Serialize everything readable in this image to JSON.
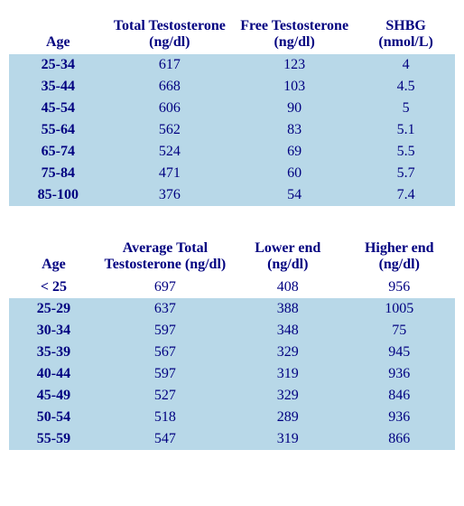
{
  "colors": {
    "text": "#000080",
    "row_band": "#b8d8e8",
    "background": "#ffffff"
  },
  "typography": {
    "font_family": "Times New Roman",
    "base_fontsize": 16,
    "header_weight": "bold",
    "age_col_weight": "bold"
  },
  "table1": {
    "type": "table",
    "columns": [
      {
        "label": "Age"
      },
      {
        "label": "Total Testosterone (ng/dl)"
      },
      {
        "label": "Free Testosterone (ng/dl)"
      },
      {
        "label": "SHBG (nmol/L)"
      }
    ],
    "rows": [
      {
        "age": "25-34",
        "total": "617",
        "free": "123",
        "shbg": "4"
      },
      {
        "age": "35-44",
        "total": "668",
        "free": "103",
        "shbg": "4.5"
      },
      {
        "age": "45-54",
        "total": "606",
        "free": "90",
        "shbg": "5"
      },
      {
        "age": "55-64",
        "total": "562",
        "free": "83",
        "shbg": "5.1"
      },
      {
        "age": "65-74",
        "total": "524",
        "free": "69",
        "shbg": "5.5"
      },
      {
        "age": "75-84",
        "total": "471",
        "free": "60",
        "shbg": "5.7"
      },
      {
        "age": "85-100",
        "total": "376",
        "free": "54",
        "shbg": "7.4"
      }
    ]
  },
  "table2": {
    "type": "table",
    "columns": [
      {
        "label": "Age"
      },
      {
        "label": "Average Total Testosterone (ng/dl)"
      },
      {
        "label": "Lower end (ng/dl)"
      },
      {
        "label": "Higher end (ng/dl)"
      }
    ],
    "rows": [
      {
        "age": "< 25",
        "avg": "697",
        "low": "408",
        "high": "956"
      },
      {
        "age": "25-29",
        "avg": "637",
        "low": "388",
        "high": "1005"
      },
      {
        "age": "30-34",
        "avg": "597",
        "low": "348",
        "high": "75"
      },
      {
        "age": "35-39",
        "avg": "567",
        "low": "329",
        "high": "945"
      },
      {
        "age": "40-44",
        "avg": "597",
        "low": "319",
        "high": "936"
      },
      {
        "age": "45-49",
        "avg": "527",
        "low": "329",
        "high": "846"
      },
      {
        "age": "50-54",
        "avg": "518",
        "low": "289",
        "high": "936"
      },
      {
        "age": "55-59",
        "avg": "547",
        "low": "319",
        "high": "866"
      }
    ]
  }
}
